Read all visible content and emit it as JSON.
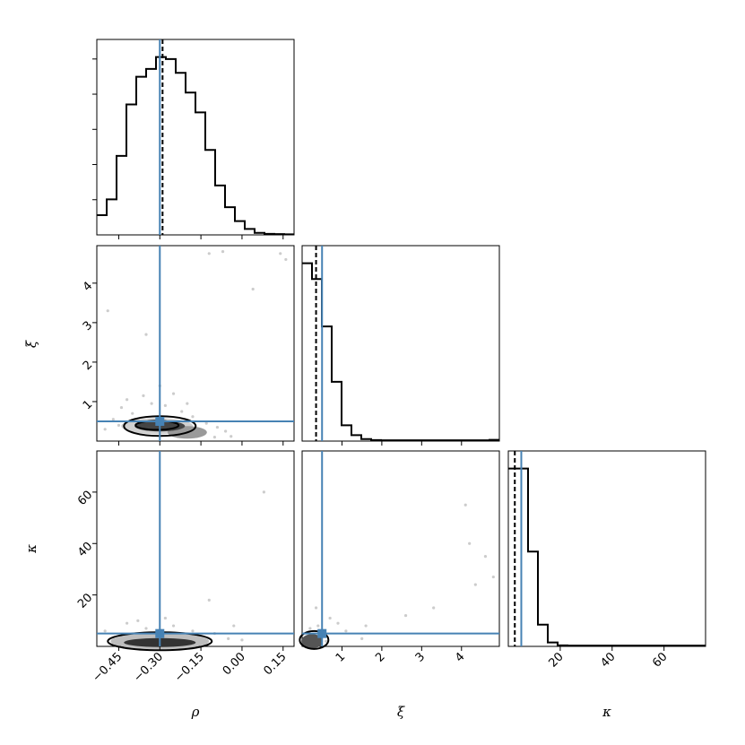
{
  "chart_data": {
    "type": "corner",
    "parameters": [
      "ρ",
      "ξ",
      "κ"
    ],
    "axis_labels": {
      "rho": "ρ",
      "xi": "ξ",
      "kappa": "κ"
    },
    "truth": {
      "rho": -0.3,
      "xi": 0.5,
      "kappa": 5
    },
    "median": {
      "rho": -0.29,
      "xi": 0.35,
      "kappa": 2.5
    },
    "colors": {
      "truth": "#4682b4",
      "hist": "#000000",
      "median": "#000000",
      "scatter": "#cccccc"
    },
    "ranges": {
      "rho": [
        -0.53,
        0.19
      ],
      "xi": [
        0.0,
        4.95
      ],
      "kappa": [
        0.0,
        76.0
      ]
    },
    "ticks": {
      "rho": {
        "values": [
          -0.45,
          -0.3,
          -0.15,
          0.0,
          0.15
        ],
        "labels": [
          "−0.45",
          "−0.30",
          "−0.15",
          "0.00",
          "0.15"
        ]
      },
      "xi": {
        "values": [
          1,
          2,
          3,
          4
        ],
        "labels": [
          "1",
          "2",
          "3",
          "4"
        ]
      },
      "kappa": {
        "values": [
          20,
          40,
          60
        ],
        "labels": [
          "20",
          "40",
          "60"
        ]
      }
    },
    "hist_rho": {
      "edges": [
        -0.53,
        -0.494,
        -0.458,
        -0.422,
        -0.386,
        -0.35,
        -0.314,
        -0.278,
        -0.242,
        -0.206,
        -0.17,
        -0.134,
        -0.098,
        -0.062,
        -0.026,
        0.01,
        0.046,
        0.082,
        0.118,
        0.154,
        0.19
      ],
      "counts": [
        0.1,
        0.18,
        0.4,
        0.66,
        0.8,
        0.84,
        0.9,
        0.89,
        0.82,
        0.72,
        0.62,
        0.43,
        0.25,
        0.14,
        0.07,
        0.03,
        0.01,
        0.005,
        0.004,
        0.003
      ]
    },
    "hist_xi": {
      "edges": [
        0.0,
        0.2475,
        0.495,
        0.7425,
        0.99,
        1.2375,
        1.485,
        1.7325,
        1.98,
        2.2275,
        2.475,
        2.7225,
        2.97,
        3.2175,
        3.465,
        3.7125,
        3.96,
        4.2075,
        4.455,
        4.7025,
        4.95
      ],
      "counts": [
        0.9,
        0.82,
        0.58,
        0.3,
        0.08,
        0.03,
        0.01,
        0.005,
        0.004,
        0.004,
        0.004,
        0.004,
        0.004,
        0.004,
        0.004,
        0.004,
        0.004,
        0.004,
        0.004,
        0.006
      ]
    },
    "hist_kappa": {
      "edges": [
        0.0,
        3.8,
        7.6,
        11.4,
        15.2,
        19.0,
        22.8,
        26.6,
        30.4,
        34.2,
        38.0,
        41.8,
        45.6,
        49.4,
        53.2,
        57.0,
        60.8,
        64.6,
        68.4,
        72.2,
        76.0
      ],
      "counts": [
        0.9,
        0.9,
        0.48,
        0.11,
        0.02,
        0.005,
        0.004,
        0.004,
        0.004,
        0.004,
        0.004,
        0.004,
        0.004,
        0.004,
        0.004,
        0.004,
        0.004,
        0.004,
        0.004,
        0.004
      ]
    },
    "scatter_rho_xi": [
      [
        -0.49,
        3.3
      ],
      [
        -0.35,
        2.7
      ],
      [
        -0.12,
        4.75
      ],
      [
        -0.07,
        4.8
      ],
      [
        0.04,
        3.85
      ],
      [
        0.14,
        4.75
      ],
      [
        0.16,
        4.6
      ],
      [
        -0.44,
        0.85
      ],
      [
        -0.4,
        0.7
      ],
      [
        -0.42,
        1.05
      ],
      [
        -0.33,
        0.95
      ],
      [
        -0.28,
        0.9
      ],
      [
        -0.22,
        0.75
      ],
      [
        -0.18,
        0.62
      ],
      [
        -0.13,
        0.45
      ],
      [
        -0.09,
        0.35
      ],
      [
        -0.06,
        0.25
      ],
      [
        -0.47,
        0.55
      ],
      [
        -0.38,
        0.3
      ],
      [
        -0.25,
        1.2
      ],
      [
        -0.3,
        1.4
      ],
      [
        -0.36,
        1.15
      ],
      [
        -0.2,
        0.95
      ],
      [
        -0.15,
        0.2
      ],
      [
        -0.1,
        0.1
      ],
      [
        -0.04,
        0.12
      ],
      [
        -0.45,
        0.4
      ],
      [
        -0.5,
        0.3
      ]
    ],
    "scatter_rho_kappa": [
      [
        -0.12,
        18
      ],
      [
        0.08,
        60
      ],
      [
        -0.03,
        8
      ],
      [
        -0.5,
        6
      ],
      [
        -0.42,
        9
      ],
      [
        -0.35,
        7
      ],
      [
        -0.25,
        8
      ],
      [
        -0.18,
        6
      ],
      [
        -0.1,
        5
      ],
      [
        -0.05,
        3
      ],
      [
        0.0,
        2.5
      ],
      [
        -0.47,
        1.5
      ],
      [
        -0.38,
        10
      ],
      [
        -0.28,
        11
      ],
      [
        -0.2,
        3
      ],
      [
        -0.14,
        2
      ]
    ],
    "scatter_xi_kappa": [
      [
        4.1,
        55
      ],
      [
        4.2,
        40
      ],
      [
        4.6,
        35
      ],
      [
        4.8,
        27
      ],
      [
        4.35,
        24
      ],
      [
        2.6,
        12
      ],
      [
        3.3,
        15
      ],
      [
        1.5,
        3
      ],
      [
        1.1,
        6
      ],
      [
        0.9,
        9
      ],
      [
        0.7,
        11
      ],
      [
        0.4,
        8
      ],
      [
        0.2,
        7
      ],
      [
        1.6,
        8
      ],
      [
        0.6,
        2
      ],
      [
        0.35,
        15
      ]
    ]
  }
}
